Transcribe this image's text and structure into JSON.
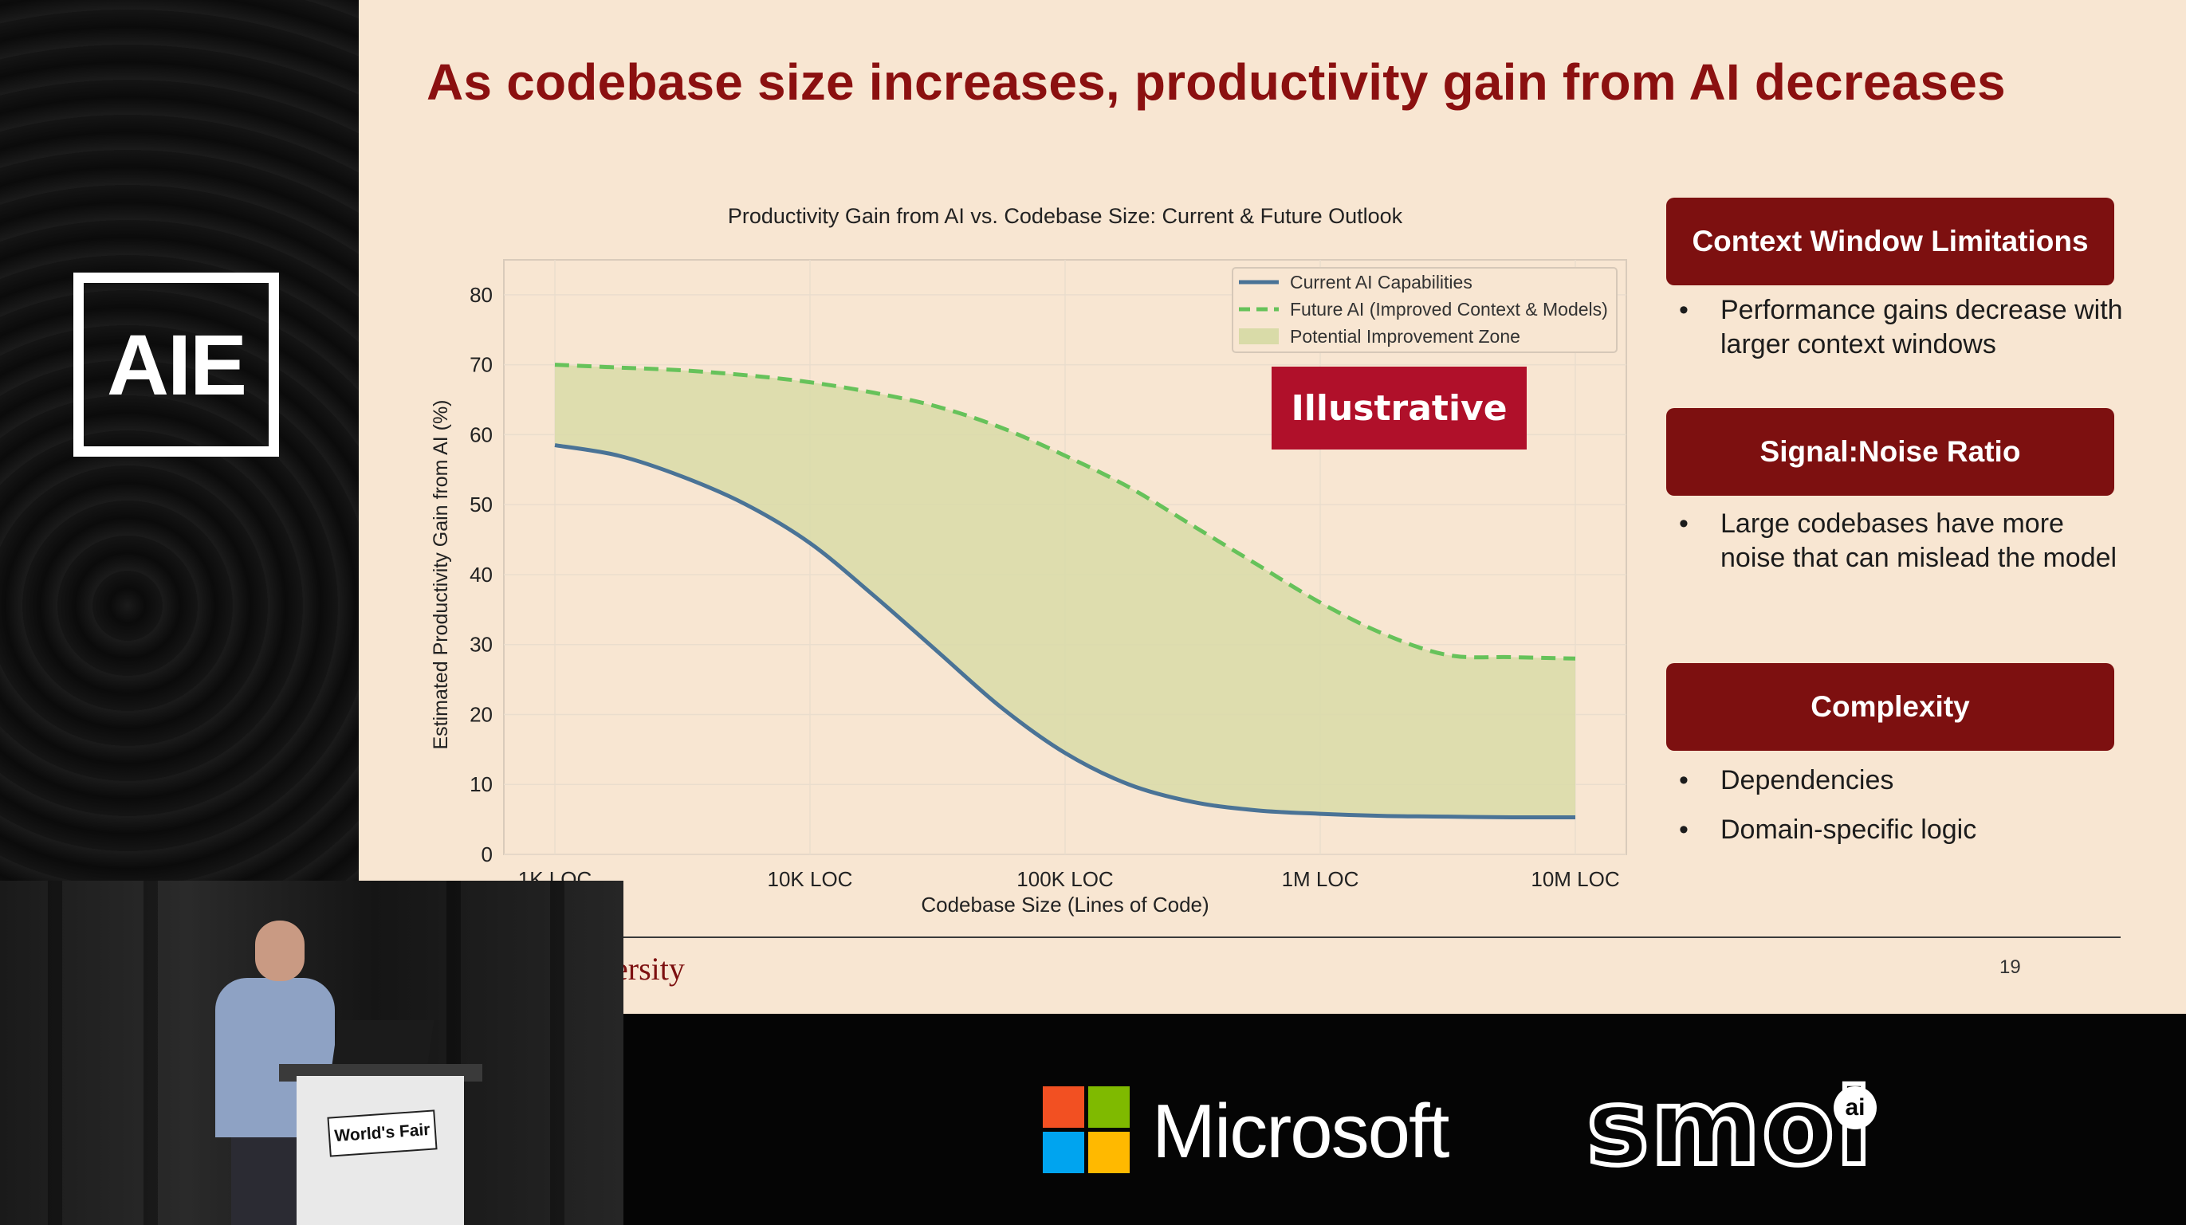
{
  "slide": {
    "title": "As codebase size increases, productivity gain from AI decreases",
    "university_fragment": "ersity",
    "page_number": "19",
    "badge": "Illustrative"
  },
  "sidebar_cards": [
    {
      "heading": "Context Window Limitations",
      "bullets": [
        "Performance gains decrease with larger context windows"
      ]
    },
    {
      "heading": "Signal:Noise Ratio",
      "bullets": [
        "Large codebases have more noise that can mislead the model"
      ]
    },
    {
      "heading": "Complexity",
      "bullets": [
        "Dependencies",
        "Domain-specific logic"
      ]
    }
  ],
  "branding": {
    "event_logo": "AIE",
    "podium_label": "World's Fair",
    "sponsor_1": "Microsoft",
    "sponsor_2": "smol",
    "sponsor_2_badge": "ai"
  },
  "colors": {
    "title": "#8b1010",
    "card": "#7d1010",
    "badge": "#b0102a",
    "current_line": "#4a7396",
    "future_line": "#66c25a",
    "zone_fill": "#d9dba8"
  },
  "chart_data": {
    "type": "line",
    "title": "Productivity Gain from AI vs. Codebase Size: Current & Future Outlook",
    "xlabel": "Codebase Size (Lines of Code)",
    "ylabel": "Estimated Productivity Gain from AI (%)",
    "x_scale": "log10",
    "x": [
      3,
      3.25,
      3.5,
      3.75,
      4,
      4.25,
      4.5,
      4.75,
      5,
      5.25,
      5.5,
      5.75,
      6,
      6.25,
      6.5,
      6.75,
      7
    ],
    "x_ticks": [
      3,
      4,
      5,
      6,
      7
    ],
    "x_tick_labels": [
      "1K LOC",
      "10K LOC",
      "100K LOC",
      "1M LOC",
      "10M LOC"
    ],
    "ylim": [
      0,
      85
    ],
    "y_ticks": [
      0,
      10,
      20,
      30,
      40,
      50,
      60,
      70,
      80
    ],
    "grid": true,
    "legend_position": "top-right",
    "series": [
      {
        "name": "Current AI Capabilities",
        "style": "solid",
        "values": [
          58.5,
          57,
          54,
          50,
          44.5,
          37,
          29,
          21,
          14.5,
          10,
          7.5,
          6.3,
          5.8,
          5.5,
          5.4,
          5.3,
          5.3
        ]
      },
      {
        "name": "Future AI (Improved Context & Models)",
        "style": "dashed",
        "values": [
          70,
          69.6,
          69.2,
          68.5,
          67.5,
          66,
          64,
          61,
          57,
          52.5,
          47,
          41.5,
          36,
          31.5,
          28.5,
          28.2,
          28
        ]
      }
    ],
    "fill_label": "Potential Improvement Zone"
  }
}
